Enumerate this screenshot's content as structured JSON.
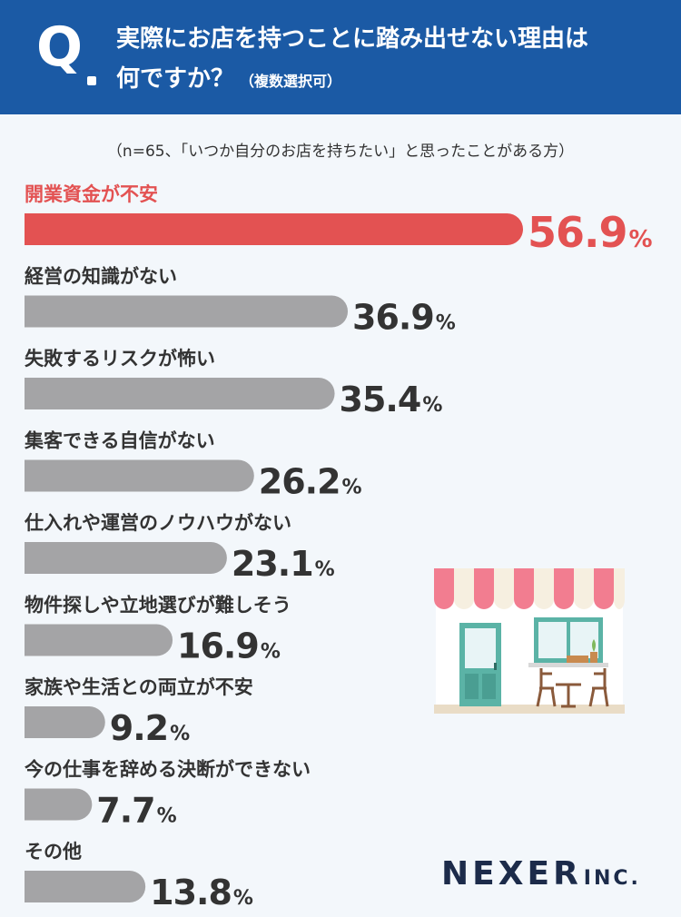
{
  "header": {
    "q_mark": "Q",
    "title_line1": "実際にお店を持つことに踏み出せない理由は",
    "title_line2": "何ですか？",
    "title_note": "（複数選択可）"
  },
  "sample_note": "（n=65、「いつか自分のお店を持ちたい」と思ったことがある方）",
  "chart_data": {
    "type": "bar",
    "orientation": "horizontal",
    "unit": "%",
    "xlim": [
      0,
      56.9
    ],
    "categories": [
      "開業資金が不安",
      "経営の知識がない",
      "失敗するリスクが怖い",
      "集客できる自信がない",
      "仕入れや運営のノウハウがない",
      "物件探しや立地選びが難しそう",
      "家族や生活との両立が不安",
      "今の仕事を辞める決断ができない",
      "その他"
    ],
    "values": [
      56.9,
      36.9,
      35.4,
      26.2,
      23.1,
      16.9,
      9.2,
      7.7,
      13.8
    ],
    "value_labels": [
      "56.9",
      "36.9",
      "35.4",
      "26.2",
      "23.1",
      "16.9",
      "9.2",
      "7.7",
      "13.8"
    ],
    "colors": {
      "highlight": "#e35252",
      "default": "#a4a4a6"
    },
    "highlight_index": 0
  },
  "illustration": {
    "icon": "storefront-illustration"
  },
  "logo": {
    "name": "NEXER",
    "suffix": "INC."
  }
}
